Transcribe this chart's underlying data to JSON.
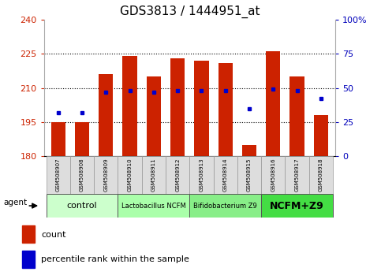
{
  "title": "GDS3813 / 1444951_at",
  "samples": [
    "GSM508907",
    "GSM508908",
    "GSM508909",
    "GSM508910",
    "GSM508911",
    "GSM508912",
    "GSM508913",
    "GSM508914",
    "GSM508915",
    "GSM508916",
    "GSM508917",
    "GSM508918"
  ],
  "bar_bottoms": [
    180,
    180,
    180,
    180,
    180,
    180,
    180,
    180,
    180,
    180,
    180,
    180
  ],
  "bar_tops": [
    195,
    195,
    216,
    224,
    215,
    223,
    222,
    221,
    185,
    226,
    215,
    198
  ],
  "percentile_values": [
    32,
    32,
    47,
    48,
    47,
    48,
    48,
    48,
    35,
    49,
    48,
    42
  ],
  "ylim_left": [
    180,
    240
  ],
  "ylim_right": [
    0,
    100
  ],
  "yticks_left": [
    180,
    195,
    210,
    225,
    240
  ],
  "yticks_right": [
    0,
    25,
    50,
    75,
    100
  ],
  "bar_color": "#cc2200",
  "dot_color": "#0000cc",
  "title_fontsize": 11,
  "groups": [
    {
      "label": "control",
      "start": 0,
      "end": 3,
      "color": "#ccffcc",
      "fontsize": 8,
      "bold": false
    },
    {
      "label": "Lactobacillus NCFM",
      "start": 3,
      "end": 6,
      "color": "#aaffaa",
      "fontsize": 6,
      "bold": false
    },
    {
      "label": "Bifidobacterium Z9",
      "start": 6,
      "end": 9,
      "color": "#88ee88",
      "fontsize": 6,
      "bold": false
    },
    {
      "label": "NCFM+Z9",
      "start": 9,
      "end": 12,
      "color": "#44dd44",
      "fontsize": 9,
      "bold": true
    }
  ],
  "bar_color_red": "#cc2200",
  "dot_color_blue": "#0000cc",
  "left_tick_color": "#cc2200",
  "right_tick_color": "#0000bb"
}
